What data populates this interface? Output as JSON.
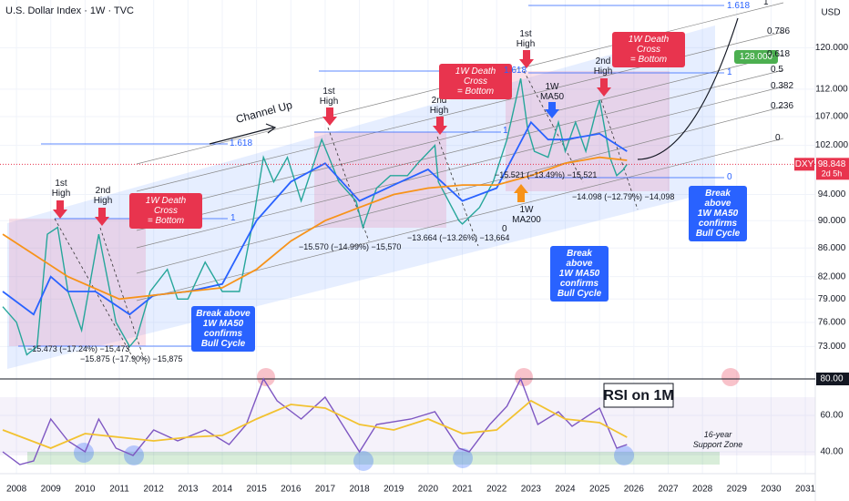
{
  "header": {
    "title": "U.S. Dollar Index · 1W · TVC",
    "currency": "USD",
    "symbol": "DXY",
    "countdown": "2d 5h"
  },
  "chart_data": [
    {
      "type": "line",
      "log_scale": true,
      "xlim": [
        2007.52,
        2031.29
      ],
      "ylim": [
        69.8,
        129.9
      ],
      "yticks": [
        {
          "value": 73,
          "label": "73.000"
        },
        {
          "value": 76,
          "label": "76.000"
        },
        {
          "value": 79,
          "label": "79.000"
        },
        {
          "value": 82,
          "label": "82.000"
        },
        {
          "value": 86,
          "label": "86.000"
        },
        {
          "value": 90,
          "label": "90.000"
        },
        {
          "value": 94,
          "label": "94.000"
        },
        {
          "value": 102,
          "label": "102.000"
        },
        {
          "value": 107,
          "label": "107.000"
        },
        {
          "value": 112,
          "label": "112.000"
        },
        {
          "value": 120,
          "label": "120.000"
        }
      ],
      "last_price": {
        "value": 98.848,
        "label": "98.848"
      },
      "series": [
        {
          "name": "DXY",
          "color": "#26a69a",
          "x": [
            2007.6,
            2008.0,
            2008.3,
            2008.6,
            2008.9,
            2009.2,
            2009.5,
            2009.9,
            2010.4,
            2010.9,
            2011.3,
            2011.5,
            2011.9,
            2012.4,
            2012.7,
            2013.0,
            2013.5,
            2014.0,
            2014.5,
            2014.9,
            2015.2,
            2015.5,
            2015.9,
            2016.3,
            2016.9,
            2017.4,
            2017.9,
            2018.1,
            2018.5,
            2018.9,
            2019.4,
            2019.7,
            2020.2,
            2020.3,
            2020.9,
            2021.0,
            2021.5,
            2021.9,
            2022.3,
            2022.7,
            2022.9,
            2023.1,
            2023.5,
            2023.8,
            2024.0,
            2024.3,
            2024.6,
            2024.9,
            2025.0,
            2025.3,
            2025.5,
            2025.7,
            2025.8
          ],
          "values": [
            78,
            76,
            72,
            73,
            88,
            89,
            80,
            75,
            88,
            76,
            73,
            74,
            80,
            83,
            79,
            79,
            84,
            80,
            80,
            90,
            100,
            96,
            100,
            93,
            103,
            96,
            93,
            89,
            95,
            97,
            97,
            99,
            102,
            96,
            90,
            89.5,
            92,
            96,
            103,
            114,
            105,
            101,
            100,
            106,
            101,
            106,
            101,
            108,
            110,
            100,
            97,
            98,
            98.848
          ]
        },
        {
          "name": "1W MA50",
          "color": "#2962ff",
          "x": [
            2007.6,
            2008.5,
            2009.0,
            2009.5,
            2010.3,
            2011.3,
            2012.0,
            2013.0,
            2014.0,
            2015.0,
            2016.0,
            2017.0,
            2018.0,
            2019.0,
            2020.0,
            2021.0,
            2022.0,
            2023.0,
            2023.5,
            2024.0,
            2025.0,
            2025.8
          ],
          "values": [
            80,
            77,
            82,
            80,
            80,
            77,
            79.5,
            80,
            81,
            90,
            96,
            99,
            93,
            95.5,
            98,
            93,
            95,
            106,
            103,
            103,
            104,
            101
          ]
        },
        {
          "name": "1W MA200",
          "color": "#f7931a",
          "x": [
            2007.6,
            2009.5,
            2011.0,
            2012.0,
            2013.0,
            2014.0,
            2015.0,
            2016.0,
            2017.0,
            2018.0,
            2019.0,
            2020.0,
            2021.0,
            2022.0,
            2023.0,
            2024.0,
            2025.0,
            2025.8
          ],
          "values": [
            88,
            82,
            79,
            79.5,
            80,
            80.5,
            83,
            87,
            90,
            92,
            94,
            95,
            95.5,
            95.5,
            97,
            99,
            100,
            99.5
          ]
        }
      ]
    },
    {
      "type": "line",
      "title": "RSI on 1M",
      "xlim": [
        2007.52,
        2031.29
      ],
      "ylim": [
        32,
        83
      ],
      "xticks": [
        2008,
        2009,
        2010,
        2011,
        2012,
        2013,
        2014,
        2015,
        2016,
        2017,
        2018,
        2019,
        2020,
        2021,
        2022,
        2023,
        2024,
        2025,
        2026,
        2027,
        2028,
        2029,
        2030,
        2031
      ],
      "yticks": [
        {
          "value": 40,
          "label": "40.00"
        },
        {
          "value": 60,
          "label": "60.00"
        },
        {
          "value": 80,
          "label": "80.00"
        }
      ],
      "series": [
        {
          "name": "RSI",
          "color": "#7e57c2",
          "x": [
            2007.6,
            2008.1,
            2008.5,
            2009.0,
            2009.5,
            2010.0,
            2010.4,
            2010.9,
            2011.4,
            2012.0,
            2012.7,
            2013.5,
            2014.2,
            2014.7,
            2015.2,
            2015.6,
            2016.3,
            2017.0,
            2017.5,
            2018.0,
            2018.5,
            2019.5,
            2020.2,
            2020.9,
            2021.2,
            2021.8,
            2022.3,
            2022.7,
            2023.2,
            2023.8,
            2024.2,
            2025.0,
            2025.5,
            2025.8
          ],
          "values": [
            40,
            33,
            35,
            58,
            46,
            40,
            58,
            42,
            38,
            52,
            46,
            52,
            44,
            55,
            80,
            68,
            58,
            70,
            55,
            40,
            55,
            58,
            62,
            42,
            40,
            55,
            65,
            80,
            55,
            62,
            54,
            64,
            42,
            44
          ]
        },
        {
          "name": "RSI MA",
          "color": "#f2c230",
          "x": [
            2007.6,
            2009.0,
            2010.0,
            2011.0,
            2012.0,
            2013.0,
            2014.0,
            2015.0,
            2016.0,
            2017.0,
            2018.0,
            2019.0,
            2020.0,
            2021.0,
            2022.0,
            2023.0,
            2024.0,
            2025.0,
            2025.8
          ],
          "values": [
            52,
            42,
            50,
            48,
            46,
            48,
            49,
            58,
            66,
            64,
            55,
            52,
            58,
            50,
            52,
            68,
            58,
            56,
            48
          ]
        }
      ]
    }
  ],
  "annotations": [
    "1st\nHigh",
    "2nd\nHigh",
    "1st\nHigh",
    "2nd\nHigh",
    "1st\nHigh",
    "2nd\nHigh",
    "1W Death Cross\n= Bottom",
    "1W Death Cross\n= Bottom",
    "1W Death Cross\n= Bottom",
    "Break above\n1W MA50\nconfirms\nBull Cycle",
    "Break above\n1W MA50\nconfirms\nBull Cycle",
    "Break above\n1W MA50\nconfirms\nBull Cycle",
    "Channel Up",
    "−15.473 (−17.24%) −15,473",
    "−15.875 (−17.90%) −15,875",
    "−15.570 (−14.99%) −15,570",
    "−13.664 (−13.26%) −13,664",
    "−15.521 (−13.49%) −15,521",
    "−14.098 (−12.79%) −14,098",
    "16-year\nSupport Zone",
    "128.000",
    "1.618",
    "1",
    "1.618",
    "1",
    "1.618",
    "1",
    "0",
    "1",
    "0.786",
    "0.618",
    "0.5",
    "0.382",
    "0.236",
    "0",
    "0"
  ]
}
